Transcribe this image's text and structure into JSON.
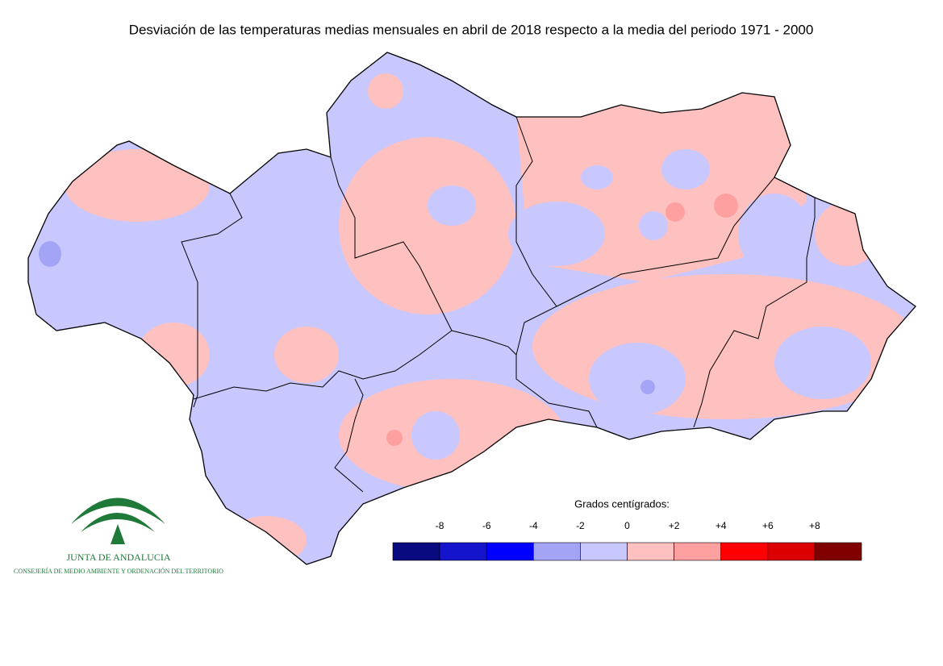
{
  "title": "Desviación de las temperaturas medias mensuales en abril de 2018 respecto a la media del periodo 1971 - 2000",
  "legend": {
    "title": "Grados centígrados:",
    "labels": [
      "-8",
      "-6",
      "-4",
      "-2",
      "0",
      "+2",
      "+4",
      "+6",
      "+8"
    ],
    "colors": [
      "#0a0a80",
      "#1414cc",
      "#0000ff",
      "#a4a4f6",
      "#c8c8ff",
      "#ffc0c0",
      "#ffa0a0",
      "#ff0000",
      "#dc0000",
      "#800000"
    ]
  },
  "logo": {
    "name": "JUNTA DE ANDALUCIA",
    "subtitle": "CONSEJERÍA DE MEDIO AMBIENTE Y ORDENACIÓN DEL TERRITORIO"
  }
}
